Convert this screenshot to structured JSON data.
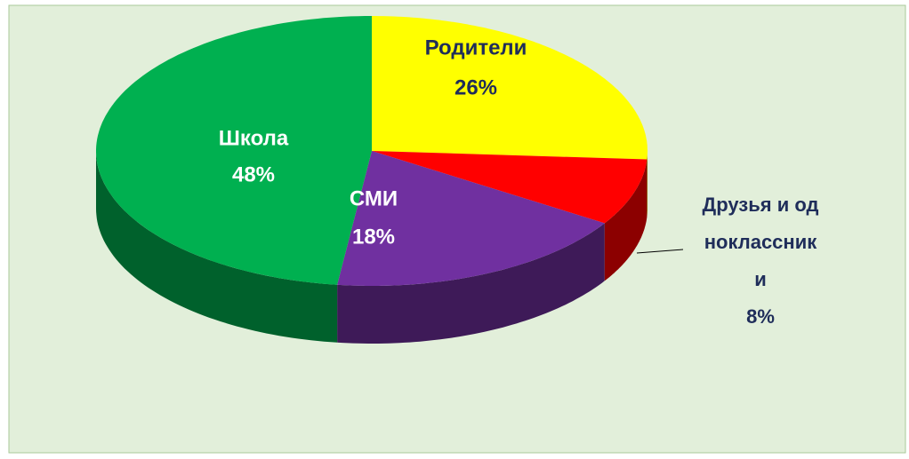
{
  "chart_data": {
    "type": "pie",
    "categories": [
      "Родители",
      "Друзья и одноклассники",
      "СМИ",
      "Школа"
    ],
    "values": [
      26,
      8,
      18,
      48
    ],
    "value_labels": [
      "26%",
      "8%",
      "18%",
      "48%"
    ],
    "colors": [
      "#ffff00",
      "#ff0000",
      "#7030a0",
      "#00b050"
    ]
  }
}
